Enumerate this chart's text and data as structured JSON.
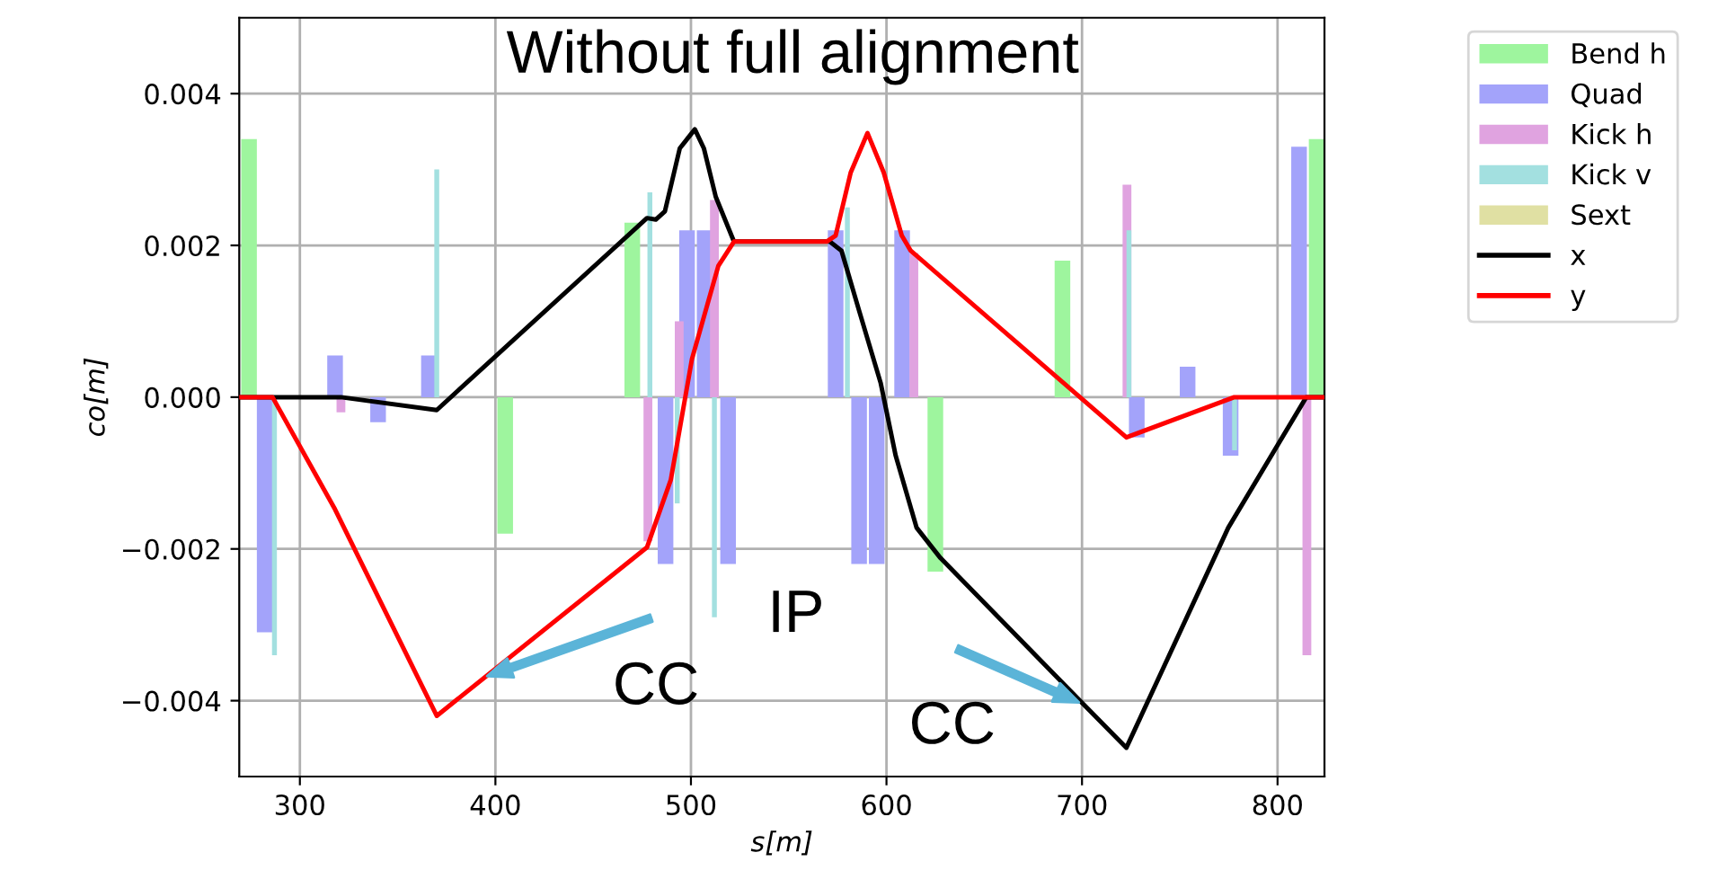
{
  "chart_data": {
    "type": "bar",
    "title": "Without full alignment",
    "xlabel": "s[m]",
    "ylabel": "co[m]",
    "xlim": [
      269,
      824
    ],
    "xticks": [
      300,
      400,
      500,
      600,
      700,
      800
    ],
    "ylim": [
      -0.005,
      0.005
    ],
    "yticks": [
      {
        "value": -0.004,
        "label": "−0.004"
      },
      {
        "value": -0.002,
        "label": "−0.002"
      },
      {
        "value": 0,
        "label": "0.000"
      },
      {
        "value": 0.002,
        "label": "0.002"
      },
      {
        "value": 0.004,
        "label": "0.004"
      }
    ],
    "grid": true,
    "legend": "top right",
    "series": [
      {
        "name": "Bend h",
        "color": "#9ef59e",
        "x": [
          274,
          405,
          470,
          625,
          690,
          820
        ],
        "values": [
          0.0034,
          -0.0018,
          0.0023,
          -0.0023,
          0.0018,
          0.0034
        ]
      },
      {
        "name": "Quad",
        "color": "#a3a3fa",
        "x": [
          282,
          318,
          340,
          366,
          487,
          498,
          507,
          519,
          574,
          586,
          595,
          608,
          728,
          754,
          776,
          811
        ],
        "values": [
          -0.0031,
          0.00055,
          -0.00033,
          0.00055,
          -0.0022,
          0.0022,
          0.0022,
          -0.0022,
          0.0022,
          -0.0022,
          -0.0022,
          0.0022,
          -0.00053,
          0.0004,
          -0.00077,
          0.0033
        ]
      },
      {
        "name": "Kick h",
        "color": "#e0a3e0",
        "x": [
          321,
          478,
          494,
          512,
          614,
          723,
          815
        ],
        "values": [
          -0.0002,
          -0.0019,
          0.001,
          0.0026,
          0.0019,
          0.0028,
          -0.0034
        ]
      },
      {
        "name": "Kick v",
        "color": "#a3e0e0",
        "x": [
          287,
          370,
          479,
          493,
          512,
          580,
          724,
          778
        ],
        "values": [
          -0.0034,
          0.003,
          0.0027,
          -0.0014,
          -0.0029,
          0.0025,
          0.0022,
          -0.0007
        ]
      },
      {
        "name": "Sext",
        "color": "#e0e0a3"
      },
      {
        "name": "x",
        "type": "line",
        "color": "#000000",
        "x": [
          269,
          321,
          370,
          477.5,
          482,
          486.7,
          494.3,
          502,
          506.6,
          512.7,
          522,
          571,
          577,
          586,
          597,
          604.7,
          615.4,
          627.6,
          699.7,
          722.7,
          774.8,
          814.7,
          824
        ],
        "values": [
          0,
          0,
          -0.00017,
          0.00236,
          0.00234,
          0.00245,
          0.00328,
          0.00353,
          0.00328,
          0.00264,
          0.00205,
          0.00205,
          0.00193,
          0.00114,
          0.00019,
          -0.00077,
          -0.00172,
          -0.00212,
          -0.00402,
          -0.00462,
          -0.00172,
          0,
          0
        ]
      },
      {
        "name": "y",
        "type": "line",
        "color": "#ff0000",
        "x": [
          269,
          286,
          318,
          370,
          477.5,
          489.7,
          500.5,
          514,
          522,
          569.4,
          574,
          581.7,
          590.3,
          598.6,
          607.8,
          612.4,
          722.7,
          777.9,
          824
        ],
        "values": [
          0,
          0,
          -0.00148,
          -0.0042,
          -0.00198,
          -0.00109,
          0.0005,
          0.00173,
          0.00205,
          0.00205,
          0.00213,
          0.00296,
          0.00348,
          0.00296,
          0.00213,
          0.00193,
          -0.00053,
          0,
          0
        ]
      }
    ],
    "annotations": [
      "CC",
      "IP",
      "CC"
    ]
  }
}
